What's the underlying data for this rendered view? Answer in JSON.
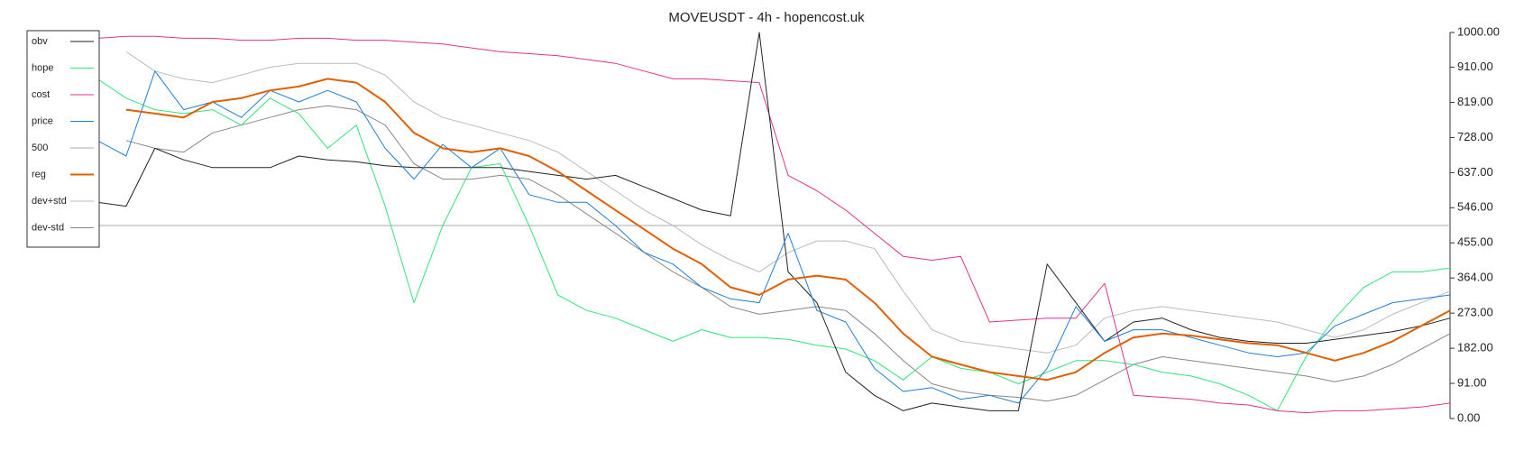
{
  "chart_data": {
    "type": "line",
    "title": "MOVEUSDT - 4h - hopencost.uk",
    "ylim": [
      0,
      1000
    ],
    "yticks": [
      {
        "value": 0,
        "label": "0.00"
      },
      {
        "value": 91,
        "label": "91.00"
      },
      {
        "value": 182,
        "label": "182.00"
      },
      {
        "value": 273,
        "label": "273.00"
      },
      {
        "value": 364,
        "label": "364.00"
      },
      {
        "value": 455,
        "label": "455.00"
      },
      {
        "value": 546,
        "label": "546.00"
      },
      {
        "value": 637,
        "label": "637.00"
      },
      {
        "value": 728,
        "label": "728.00"
      },
      {
        "value": 819,
        "label": "819.00"
      },
      {
        "value": 910,
        "label": "910.00"
      },
      {
        "value": 1000,
        "label": "1000.00"
      }
    ],
    "legend": "upper left",
    "series": [
      {
        "name": "obv",
        "color": "#222222",
        "width": 1,
        "values": [
          560,
          550,
          700,
          670,
          650,
          650,
          650,
          680,
          670,
          665,
          655,
          650,
          650,
          650,
          650,
          640,
          630,
          620,
          630,
          600,
          570,
          540,
          525,
          1000,
          380,
          300,
          120,
          60,
          20,
          40,
          30,
          20,
          20,
          400,
          300,
          200,
          250,
          260,
          230,
          210,
          200,
          195,
          195,
          205,
          215,
          225,
          240,
          260
        ]
      },
      {
        "name": "hope",
        "color": "#2ee57a",
        "width": 1,
        "values": [
          880,
          830,
          800,
          790,
          800,
          760,
          830,
          790,
          700,
          760,
          550,
          300,
          500,
          650,
          660,
          500,
          320,
          280,
          260,
          230,
          200,
          230,
          210,
          210,
          205,
          190,
          180,
          150,
          100,
          160,
          130,
          120,
          90,
          120,
          150,
          150,
          140,
          120,
          110,
          90,
          60,
          20,
          160,
          260,
          340,
          380,
          380,
          390
        ]
      },
      {
        "name": "cost",
        "color": "#e0338a",
        "width": 1,
        "values": [
          985,
          990,
          990,
          985,
          985,
          980,
          980,
          985,
          985,
          980,
          980,
          975,
          970,
          960,
          950,
          945,
          940,
          930,
          920,
          900,
          880,
          880,
          875,
          870,
          630,
          590,
          540,
          480,
          420,
          410,
          420,
          250,
          255,
          260,
          260,
          350,
          60,
          55,
          50,
          40,
          35,
          20,
          15,
          20,
          20,
          25,
          30,
          40
        ]
      },
      {
        "name": "price",
        "color": "#1f7fd6",
        "width": 1,
        "values": [
          720,
          680,
          900,
          800,
          820,
          780,
          850,
          820,
          850,
          820,
          700,
          620,
          710,
          650,
          700,
          580,
          560,
          560,
          500,
          430,
          400,
          340,
          310,
          300,
          480,
          280,
          250,
          130,
          70,
          80,
          50,
          60,
          40,
          130,
          290,
          200,
          230,
          230,
          210,
          190,
          170,
          160,
          170,
          240,
          270,
          300,
          310,
          320
        ]
      },
      {
        "name": "500",
        "color": "#aaaaaa",
        "width": 1,
        "values": [
          500,
          500,
          500,
          500,
          500,
          500,
          500,
          500,
          500,
          500,
          500,
          500,
          500,
          500,
          500,
          500,
          500,
          500,
          500,
          500,
          500,
          500,
          500,
          500,
          500,
          500,
          500,
          500,
          500,
          500,
          500,
          500,
          500,
          500,
          500,
          500,
          500,
          500,
          500,
          500,
          500,
          500,
          500,
          500,
          500,
          500,
          500,
          500
        ]
      },
      {
        "name": "reg",
        "color": "#e06000",
        "width": 2,
        "values": [
          null,
          800,
          790,
          780,
          820,
          830,
          850,
          860,
          880,
          870,
          820,
          740,
          700,
          690,
          700,
          680,
          640,
          590,
          540,
          490,
          440,
          400,
          340,
          320,
          360,
          370,
          360,
          300,
          220,
          160,
          140,
          120,
          110,
          100,
          120,
          170,
          210,
          220,
          215,
          205,
          195,
          190,
          170,
          150,
          170,
          200,
          240,
          280
        ]
      },
      {
        "name": "dev+std",
        "color": "#bbbbbb",
        "width": 1,
        "values": [
          null,
          950,
          900,
          880,
          870,
          890,
          910,
          920,
          920,
          920,
          890,
          820,
          780,
          760,
          740,
          720,
          690,
          640,
          590,
          540,
          500,
          450,
          410,
          380,
          430,
          460,
          460,
          440,
          330,
          230,
          200,
          190,
          180,
          170,
          190,
          260,
          280,
          290,
          280,
          270,
          260,
          250,
          230,
          210,
          230,
          270,
          300,
          330
        ]
      },
      {
        "name": "dev-std",
        "color": "#888888",
        "width": 1,
        "values": [
          null,
          720,
          700,
          690,
          740,
          760,
          780,
          800,
          810,
          800,
          760,
          660,
          620,
          620,
          630,
          620,
          580,
          530,
          480,
          430,
          380,
          340,
          290,
          270,
          280,
          290,
          280,
          220,
          150,
          90,
          70,
          60,
          55,
          45,
          60,
          100,
          140,
          160,
          150,
          140,
          130,
          120,
          110,
          95,
          110,
          140,
          180,
          220
        ]
      }
    ]
  }
}
